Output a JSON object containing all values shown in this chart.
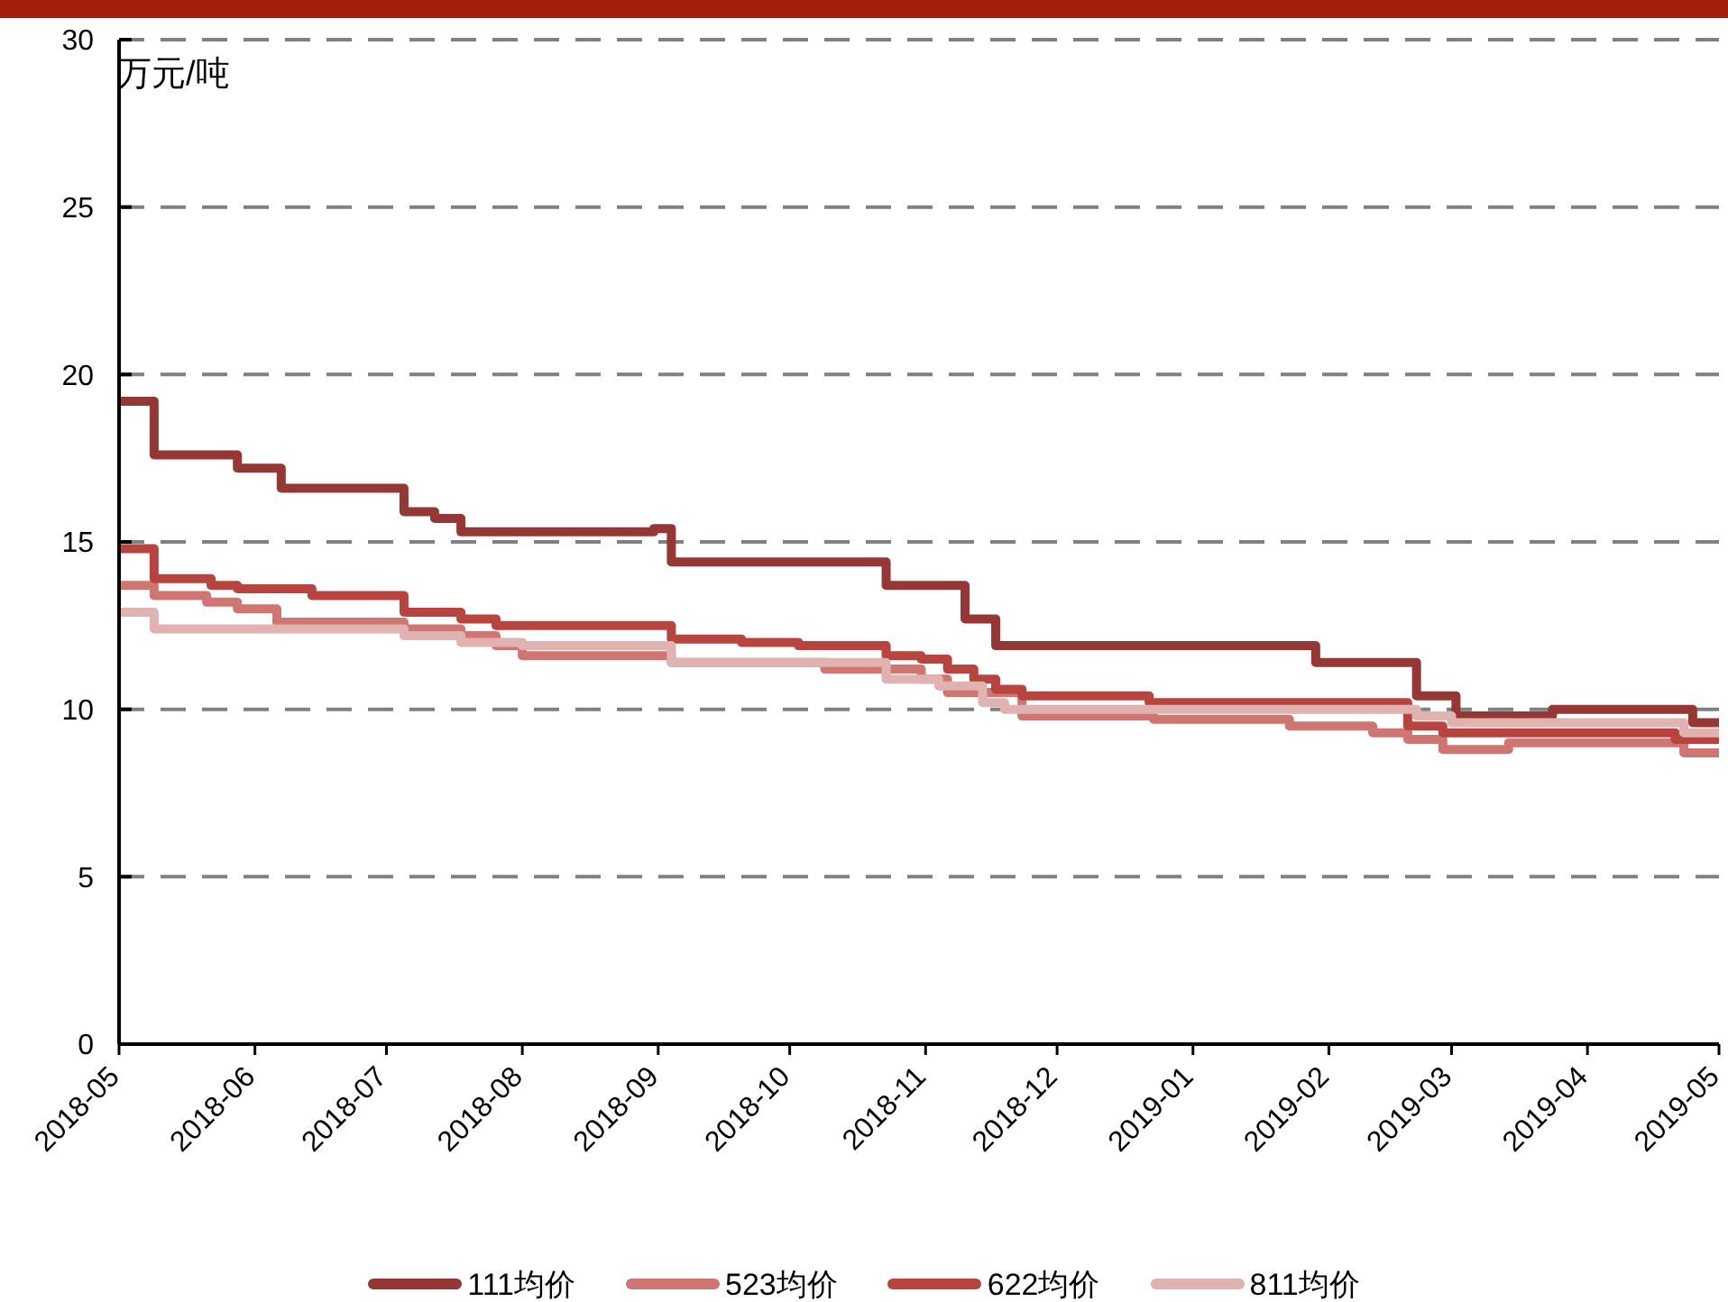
{
  "chart_data": {
    "type": "step",
    "ylabel": "万元/吨",
    "xlim": [
      "2018-05",
      "2019-05"
    ],
    "xticks": [
      "2018-05",
      "2018-06",
      "2018-07",
      "2018-08",
      "2018-09",
      "2018-10",
      "2018-11",
      "2018-12",
      "2019-01",
      "2019-02",
      "2019-03",
      "2019-04",
      "2019-05"
    ],
    "ylim": [
      0,
      30
    ],
    "yticks": [
      0,
      5,
      10,
      15,
      20,
      25,
      30
    ],
    "grid": "y",
    "legend": "bottom",
    "series": [
      {
        "name": "111均价",
        "color": "#953735",
        "x": [
          "2018-05-01",
          "2018-05-09",
          "2018-05-28",
          "2018-06-07",
          "2018-07-05",
          "2018-07-12",
          "2018-07-18",
          "2018-08-31",
          "2018-09-04",
          "2018-10-23",
          "2018-11-10",
          "2018-11-17",
          "2019-01-29",
          "2019-02-21",
          "2019-03-02",
          "2019-03-24",
          "2019-04-25",
          "2019-05-01"
        ],
        "values": [
          19.2,
          17.6,
          17.2,
          16.6,
          15.9,
          15.7,
          15.3,
          15.4,
          14.4,
          13.7,
          12.7,
          11.9,
          11.4,
          10.4,
          9.8,
          10.0,
          9.6,
          9.6
        ]
      },
      {
        "name": "523均价",
        "color": "#cf7672",
        "x": [
          "2018-05-01",
          "2018-05-09",
          "2018-05-21",
          "2018-05-28",
          "2018-06-06",
          "2018-07-05",
          "2018-07-18",
          "2018-07-26",
          "2018-08-01",
          "2018-09-04",
          "2018-10-09",
          "2018-10-31",
          "2018-11-06",
          "2018-11-23",
          "2018-12-23",
          "2019-01-23",
          "2019-02-11",
          "2019-02-19",
          "2019-02-27",
          "2019-03-14",
          "2019-04-23",
          "2019-05-01"
        ],
        "values": [
          13.7,
          13.4,
          13.2,
          13.0,
          12.6,
          12.4,
          12.2,
          11.9,
          11.6,
          11.4,
          11.2,
          10.9,
          10.5,
          9.8,
          9.7,
          9.5,
          9.3,
          9.1,
          8.8,
          9.0,
          8.7,
          8.7
        ]
      },
      {
        "name": "622均价",
        "color": "#b8443f",
        "x": [
          "2018-05-01",
          "2018-05-09",
          "2018-05-22",
          "2018-05-28",
          "2018-06-14",
          "2018-07-05",
          "2018-07-18",
          "2018-07-26",
          "2018-09-04",
          "2018-09-20",
          "2018-10-03",
          "2018-10-23",
          "2018-10-31",
          "2018-11-06",
          "2018-11-12",
          "2018-11-17",
          "2018-11-23",
          "2018-12-22",
          "2019-02-19",
          "2019-02-27",
          "2019-04-21",
          "2019-05-01"
        ],
        "values": [
          14.8,
          13.9,
          13.7,
          13.6,
          13.4,
          12.9,
          12.7,
          12.5,
          12.1,
          12.0,
          11.9,
          11.6,
          11.5,
          11.2,
          10.9,
          10.6,
          10.4,
          10.2,
          9.5,
          9.3,
          9.1,
          9.1
        ]
      },
      {
        "name": "811均价",
        "color": "#e0b2b0",
        "x": [
          "2018-05-01",
          "2018-05-09",
          "2018-05-28",
          "2018-07-05",
          "2018-07-18",
          "2018-08-01",
          "2018-09-04",
          "2018-10-23",
          "2018-11-04",
          "2018-11-14",
          "2018-11-19",
          "2019-02-21",
          "2019-03-01",
          "2019-04-23",
          "2019-05-01"
        ],
        "values": [
          12.9,
          12.4,
          12.4,
          12.2,
          12.0,
          11.9,
          11.4,
          10.9,
          10.7,
          10.2,
          10.0,
          9.8,
          9.6,
          9.3,
          9.3
        ]
      }
    ]
  }
}
